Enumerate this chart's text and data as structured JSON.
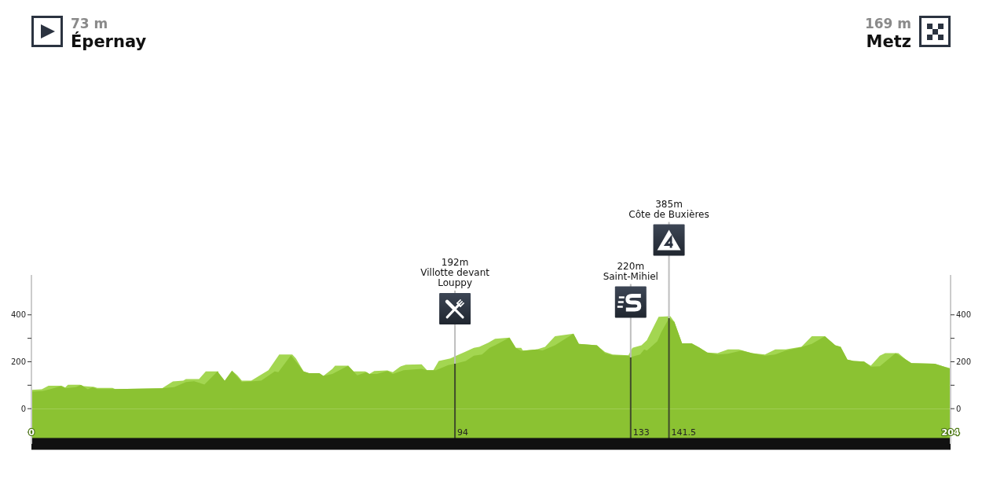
{
  "chart_data": {
    "type": "area",
    "xlim": [
      0,
      204
    ],
    "xticks": [
      0,
      204
    ],
    "ylim": [
      -150,
      570
    ],
    "yticks": [
      {
        "value": -100,
        "label": null
      },
      0,
      {
        "value": 100,
        "label": null
      },
      200,
      {
        "value": 300,
        "label": null
      },
      400
    ],
    "y2lim": [
      -150,
      570
    ],
    "y2ticks": [
      {
        "value": -100,
        "label": null
      },
      0,
      {
        "value": 100,
        "label": null
      },
      200,
      {
        "value": 300,
        "label": null
      },
      400
    ],
    "series": [
      {
        "color": "#a3d651",
        "x": [
          0,
          2.3,
          3.8,
          6.7,
          7.5,
          8.1,
          10.8,
          11.6,
          13.9,
          14.6,
          18,
          18.6,
          29,
          31.4,
          33.7,
          34.3,
          37.2,
          38.7,
          41.5,
          42.9,
          44.5,
          45.7,
          46.7,
          48.8,
          50.3,
          52.6,
          55,
          57.9,
          58.7,
          60.4,
          61.6,
          63.9,
          64.8,
          66.8,
          67.4,
          70.3,
          71.5,
          74.1,
          75,
          76.1,
          79,
          80.2,
          82,
          83.1,
          86.6,
          87.8,
          89.2,
          90.4,
          93,
          94,
          96.2,
          98.2,
          99.4,
          101.4,
          102.9,
          106.1,
          107.5,
          108.7,
          109.1,
          112.2,
          114,
          116.2,
          120.3,
          121.5,
          125.5,
          127.3,
          129,
          132.5,
          133.4,
          135.4,
          136.6,
          139.2,
          141.8,
          142.7,
          144.4,
          146.5,
          148.2,
          150,
          152.3,
          154.6,
          157,
          159.9,
          162.8,
          165.1,
          167.4,
          170.9,
          173.2,
          176.1,
          178.4,
          179.6,
          181.1,
          182.5,
          184.8,
          186.3,
          188.3,
          189.5,
          192.4,
          194.1,
          195.3,
          200.5,
          202.3,
          204
        ],
        "values": [
          80,
          83,
          98,
          98,
          90,
          102,
          102,
          96,
          93,
          89,
          89,
          84,
          87,
          116,
          120,
          126,
          126,
          159,
          159,
          null,
          162,
          142,
          120,
          120,
          137,
          164,
          231,
          231,
          214,
          159,
          151,
          151,
          140,
          170,
          183,
          183,
          159,
          159,
          148,
          161,
          163,
          156,
          181,
          187,
          189,
          164,
          164,
          203,
          214,
          223,
          242,
          259,
          264,
          281,
          298,
          303,
          259,
          259,
          248,
          253,
          264,
          309,
          320,
          276,
          270,
          242,
          231,
          228,
          259,
          270,
          292,
          392,
          394,
          370,
          279,
          279,
          261,
          239,
          237,
          253,
          253,
          237,
          231,
          253,
          253,
          264,
          309,
          309,
          270,
          264,
          209,
          203,
          201,
          183,
          226,
          237,
          237,
          209,
          194,
          192,
          181,
          172
        ]
      },
      {
        "color": "#8bc232",
        "x": [
          0,
          2.4,
          4.1,
          6.5,
          7.6,
          9.9,
          11,
          12.5,
          13.6,
          14.6,
          18.6,
          29,
          31.7,
          34.3,
          36.1,
          38.4,
          41.3,
          42.9,
          44.5,
          46.7,
          51,
          54,
          54.8,
          57.6,
          60.4,
          61.6,
          63.9,
          64.8,
          66.8,
          70.3,
          72.3,
          74.4,
          75,
          76.7,
          79,
          80.2,
          82.6,
          86.6,
          87.8,
          89.8,
          92.5,
          94,
          96.4,
          98.2,
          100,
          101.7,
          102.9,
          106.1,
          107.5,
          108.7,
          112.2,
          113.4,
          116.2,
          118,
          120.3,
          121.5,
          125.5,
          127.3,
          129,
          132.5,
          133,
          135.1,
          136,
          136.6,
          138.9,
          139.8,
          141.5,
          142.7,
          144.4,
          146.5,
          148.2,
          150,
          152.3,
          154.6,
          157.6,
          159.9,
          162.8,
          165.1,
          167.4,
          170.3,
          173.2,
          176.1,
          178.4,
          179.6,
          181.1,
          182.5,
          184.8,
          186.3,
          188.3,
          191.8,
          194.1,
          195.3,
          200.5,
          202.3,
          204
        ],
        "values": [
          73,
          75,
          83,
          96,
          87,
          92,
          101,
          83,
          92,
          84,
          84,
          87,
          92,
          114,
          117,
          103,
          159,
          120,
          162,
          114,
          120,
          159,
          156,
          228,
          159,
          151,
          151,
          140,
          148,
          183,
          142,
          156,
          148,
          148,
          161,
          148,
          164,
          170,
          164,
          164,
          186,
          192,
          203,
          226,
          231,
          259,
          270,
          303,
          259,
          246,
          253,
          248,
          270,
          292,
          320,
          276,
          270,
          237,
          228,
          226,
          220,
          231,
          253,
          248,
          287,
          326,
          385,
          370,
          279,
          279,
          261,
          239,
          231,
          234,
          248,
          237,
          226,
          231,
          248,
          259,
          276,
          309,
          270,
          264,
          209,
          203,
          201,
          179,
          181,
          237,
          209,
          194,
          192,
          181,
          169
        ]
      }
    ],
    "bands": [
      {
        "axis": "y",
        "from": -150,
        "to": 0,
        "color": "#8bc232"
      }
    ],
    "ref_lines": [
      {
        "axis": "x",
        "value": 94,
        "label": "94"
      },
      {
        "axis": "x",
        "value": 133,
        "label": "133"
      },
      {
        "axis": "x",
        "value": 141.5,
        "label": "141.5"
      }
    ],
    "annotations": [
      "73 m\nÉpernay",
      "169 m\nMetz",
      "192m\nVillotte devant\nLouppy",
      "220m\nSaint-Mihiel",
      "385m\nCôte de Buxières"
    ]
  }
}
